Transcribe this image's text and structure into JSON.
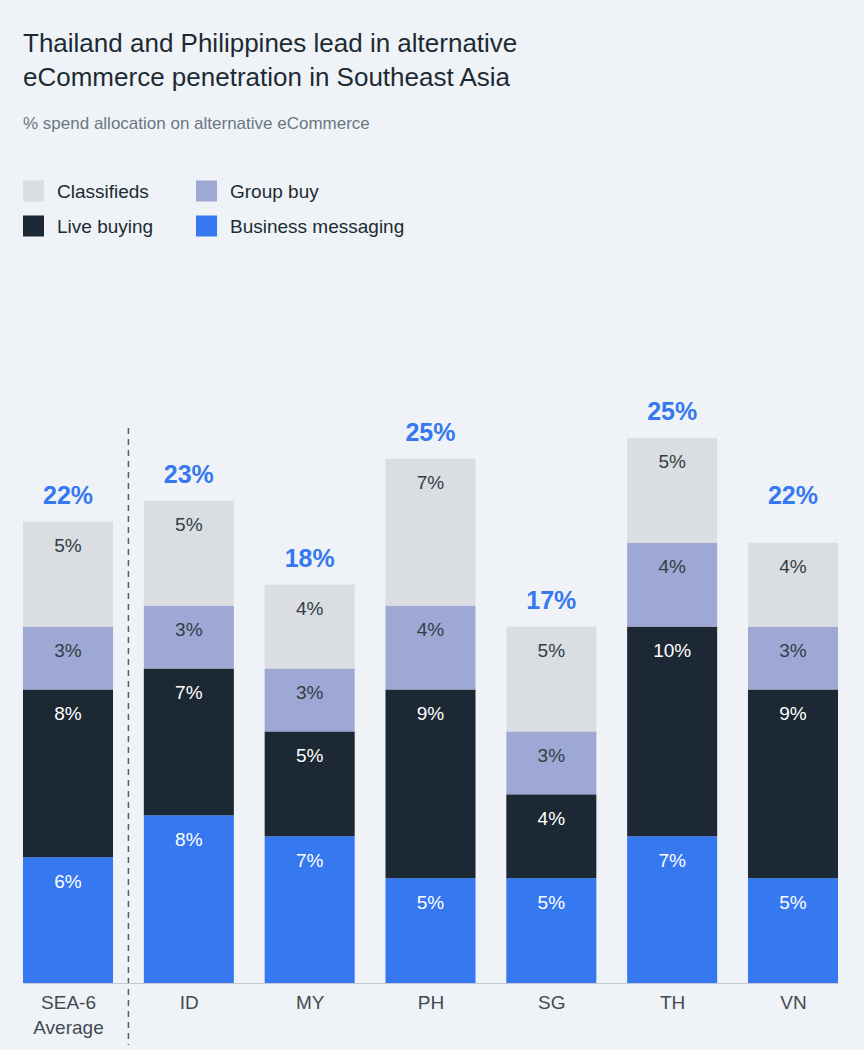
{
  "chart_data": {
    "type": "bar",
    "stacked": true,
    "title": "Thailand and Philippines lead in alternative eCommerce penetration in Southeast Asia",
    "subtitle": "% spend allocation on alternative eCommerce",
    "categories": [
      "SEA-6 Average",
      "ID",
      "MY",
      "PH",
      "SG",
      "TH",
      "VN"
    ],
    "series": [
      {
        "name": "Business messaging",
        "color": "#3578f0",
        "values": [
          6,
          8,
          7,
          5,
          5,
          7,
          5
        ],
        "value_labels": [
          "6%",
          "8%",
          "7%",
          "5%",
          "5%",
          "7%",
          "5%"
        ]
      },
      {
        "name": "Live buying",
        "color": "#1c2833",
        "values": [
          8,
          7,
          5,
          9,
          4,
          10,
          9
        ],
        "value_labels": [
          "8%",
          "7%",
          "5%",
          "9%",
          "4%",
          "10%",
          "9%"
        ]
      },
      {
        "name": "Group buy",
        "color": "#9ea8d4",
        "values": [
          3,
          3,
          3,
          4,
          3,
          4,
          3
        ],
        "value_labels": [
          "3%",
          "3%",
          "3%",
          "4%",
          "3%",
          "4%",
          "3%"
        ]
      },
      {
        "name": "Classifieds",
        "color": "#dadde1",
        "values": [
          5,
          5,
          4,
          7,
          5,
          5,
          4
        ],
        "value_labels": [
          "5%",
          "5%",
          "4%",
          "7%",
          "5%",
          "5%",
          "4%"
        ]
      }
    ],
    "totals": [
      22,
      23,
      18,
      25,
      17,
      25,
      22
    ],
    "total_labels": [
      "22%",
      "23%",
      "18%",
      "25%",
      "17%",
      "25%",
      "22%"
    ],
    "ylim": [
      0,
      30
    ],
    "yticks": [],
    "data_labels": true,
    "tick_labels": "x",
    "legend": "top-left"
  }
}
